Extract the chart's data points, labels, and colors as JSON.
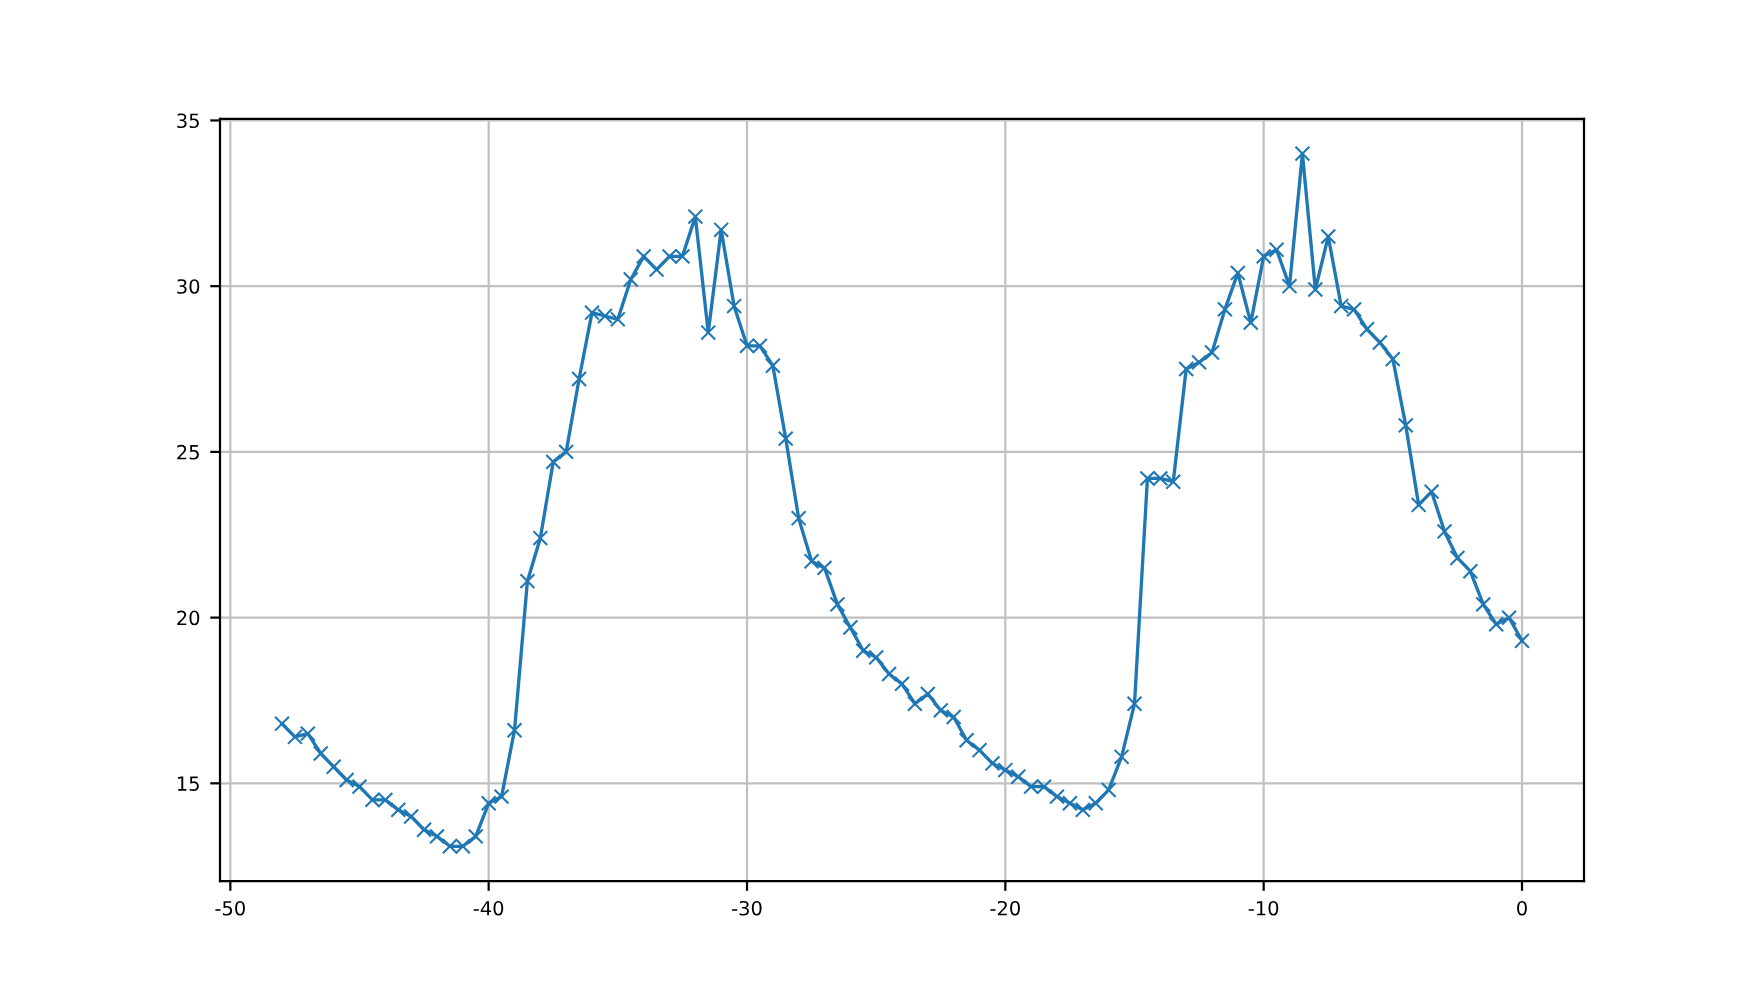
{
  "chart_data": {
    "type": "line",
    "x": [
      -48,
      -47.5,
      -47,
      -46.5,
      -46,
      -45.5,
      -45,
      -44.5,
      -44,
      -43.5,
      -43,
      -42.5,
      -42,
      -41.5,
      -41,
      -40.5,
      -40,
      -39.5,
      -39,
      -38.5,
      -38,
      -37.5,
      -37,
      -36.5,
      -36,
      -35.5,
      -35,
      -34.5,
      -34,
      -33.5,
      -33,
      -32.5,
      -32,
      -31.5,
      -31,
      -30.5,
      -30,
      -29.5,
      -29,
      -28.5,
      -28,
      -27.5,
      -27,
      -26.5,
      -26,
      -25.5,
      -25,
      -24.5,
      -24,
      -23.5,
      -23,
      -22.5,
      -22,
      -21.5,
      -21,
      -20.5,
      -20,
      -19.5,
      -19,
      -18.5,
      -18,
      -17.5,
      -17,
      -16.5,
      -16,
      -15.5,
      -15,
      -14.5,
      -14,
      -13.5,
      -13,
      -12.5,
      -12,
      -11.5,
      -11,
      -10.5,
      -10,
      -9.5,
      -9,
      -8.5,
      -8,
      -7.5,
      -7,
      -6.5,
      -6,
      -5.5,
      -5,
      -4.5,
      -4,
      -3.5,
      -3,
      -2.5,
      -2,
      -1.5,
      -1,
      -0.5,
      0
    ],
    "series": [
      {
        "color": "#1f77b4",
        "values": [
          16.8,
          16.4,
          16.5,
          15.9,
          15.5,
          15.1,
          14.9,
          14.5,
          14.5,
          14.2,
          14.0,
          13.6,
          13.4,
          13.1,
          13.1,
          13.4,
          14.4,
          14.6,
          16.6,
          21.1,
          22.4,
          24.7,
          25.0,
          27.2,
          29.2,
          29.1,
          29.0,
          30.2,
          30.9,
          30.5,
          30.9,
          30.9,
          32.1,
          28.6,
          31.7,
          29.4,
          28.2,
          28.2,
          27.6,
          25.4,
          23.0,
          21.7,
          21.5,
          20.4,
          19.7,
          19.0,
          18.8,
          18.3,
          18.0,
          17.4,
          17.7,
          17.2,
          17.0,
          16.3,
          16.0,
          15.6,
          15.4,
          15.2,
          14.9,
          14.9,
          14.6,
          14.4,
          14.2,
          14.4,
          14.8,
          15.8,
          17.4,
          24.2,
          24.2,
          24.1,
          27.5,
          27.7,
          28.0,
          29.3,
          30.4,
          28.9,
          30.9,
          31.1,
          30.0,
          34.0,
          29.9,
          31.5,
          29.4,
          29.3,
          28.7,
          28.3,
          27.8,
          25.8,
          23.4,
          23.8,
          22.6,
          21.8,
          21.4,
          20.4,
          19.8,
          20.0,
          19.3
        ]
      }
    ],
    "xlim": [
      -50.4,
      2.4
    ],
    "ylim": [
      12.05,
      35.05
    ],
    "xticks": [
      -50,
      -40,
      -30,
      -20,
      -10,
      0
    ],
    "yticks": [
      15,
      20,
      25,
      30,
      35
    ],
    "grid": true,
    "marker": "cross",
    "line_style": "solid",
    "legend": false
  }
}
